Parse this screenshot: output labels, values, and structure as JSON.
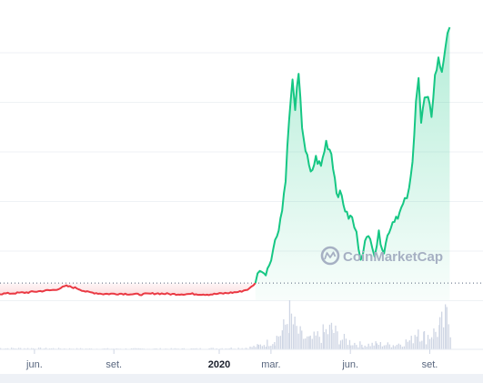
{
  "watermark": {
    "text": "CoinMarketCap",
    "icon": "coinmarketcap-logo-icon"
  },
  "colors": {
    "down_line": "#ea3943",
    "up_line": "#16c784",
    "up_fill": "#16c784",
    "down_fill": "#ea3943",
    "volume": "#cfd6e4",
    "grid": "#eff2f5",
    "baseline_dots": "#58667e",
    "axis_text": "#58667e"
  },
  "chart_data": {
    "type": "line",
    "title": "",
    "xlabel": "",
    "ylabel": "",
    "grid": true,
    "x_ticks": [
      {
        "label": "jun.",
        "date": "2019-06-01",
        "bold": false
      },
      {
        "label": "set.",
        "date": "2019-09-01",
        "bold": false
      },
      {
        "label": "2020",
        "date": "2020-01-01",
        "bold": true
      },
      {
        "label": "mar.",
        "date": "2020-03-01",
        "bold": false
      },
      {
        "label": "jun.",
        "date": "2020-06-01",
        "bold": false
      },
      {
        "label": "set.",
        "date": "2020-09-01",
        "bold": false
      }
    ],
    "x_range": [
      "2019-04-20",
      "2020-10-01"
    ],
    "y_range": [
      0,
      100
    ],
    "baseline_value": 6.3,
    "series": [
      {
        "color": "#ea3943",
        "points": [
          [
            "2019-04-20",
            2.3
          ],
          [
            "2019-05-10",
            2.6
          ],
          [
            "2019-05-25",
            2.9
          ],
          [
            "2019-06-10",
            3.4
          ],
          [
            "2019-06-25",
            3.8
          ],
          [
            "2019-07-08",
            5.2
          ],
          [
            "2019-07-20",
            4.4
          ],
          [
            "2019-08-01",
            3.0
          ],
          [
            "2019-08-20",
            2.3
          ],
          [
            "2019-09-10",
            2.4
          ],
          [
            "2019-10-01",
            2.1
          ],
          [
            "2019-10-20",
            2.5
          ],
          [
            "2019-11-10",
            2.2
          ],
          [
            "2019-12-01",
            2.3
          ],
          [
            "2019-12-20",
            2.1
          ],
          [
            "2020-01-10",
            2.6
          ],
          [
            "2020-01-25",
            3.1
          ],
          [
            "2020-02-05",
            4.2
          ],
          [
            "2020-02-12",
            6.3
          ]
        ]
      },
      {
        "color": "#16c784",
        "points": [
          [
            "2020-02-12",
            6.3
          ],
          [
            "2020-02-17",
            12.0
          ],
          [
            "2020-02-22",
            9.0
          ],
          [
            "2020-02-28",
            13.5
          ],
          [
            "2020-03-08",
            24.0
          ],
          [
            "2020-03-14",
            33.0
          ],
          [
            "2020-03-18",
            45.0
          ],
          [
            "2020-03-22",
            66.0
          ],
          [
            "2020-03-26",
            80.0
          ],
          [
            "2020-03-29",
            71.0
          ],
          [
            "2020-04-02",
            82.0
          ],
          [
            "2020-04-06",
            64.0
          ],
          [
            "2020-04-10",
            55.0
          ],
          [
            "2020-04-16",
            46.0
          ],
          [
            "2020-04-22",
            52.0
          ],
          [
            "2020-04-28",
            49.0
          ],
          [
            "2020-05-04",
            58.0
          ],
          [
            "2020-05-10",
            54.0
          ],
          [
            "2020-05-16",
            40.0
          ],
          [
            "2020-05-22",
            38.0
          ],
          [
            "2020-05-28",
            31.0
          ],
          [
            "2020-06-03",
            30.0
          ],
          [
            "2020-06-08",
            24.0
          ],
          [
            "2020-06-13",
            16.0
          ],
          [
            "2020-06-18",
            21.0
          ],
          [
            "2020-06-24",
            24.0
          ],
          [
            "2020-06-29",
            17.0
          ],
          [
            "2020-07-04",
            24.0
          ],
          [
            "2020-07-10",
            18.0
          ],
          [
            "2020-07-16",
            26.0
          ],
          [
            "2020-07-22",
            30.0
          ],
          [
            "2020-07-28",
            32.0
          ],
          [
            "2020-08-03",
            36.0
          ],
          [
            "2020-08-08",
            40.0
          ],
          [
            "2020-08-12",
            50.0
          ],
          [
            "2020-08-16",
            74.0
          ],
          [
            "2020-08-19",
            82.0
          ],
          [
            "2020-08-22",
            65.0
          ],
          [
            "2020-08-26",
            74.0
          ],
          [
            "2020-08-30",
            73.0
          ],
          [
            "2020-09-03",
            68.0
          ],
          [
            "2020-09-07",
            82.0
          ],
          [
            "2020-09-11",
            88.0
          ],
          [
            "2020-09-15",
            84.0
          ],
          [
            "2020-09-19",
            93.0
          ],
          [
            "2020-09-24",
            100.0
          ]
        ]
      }
    ],
    "volume": {
      "range": [
        0,
        100
      ],
      "points": [
        [
          "2019-04-20",
          3
        ],
        [
          "2019-06-01",
          3
        ],
        [
          "2019-08-01",
          2
        ],
        [
          "2019-10-01",
          2
        ],
        [
          "2019-12-01",
          2
        ],
        [
          "2020-02-01",
          4
        ],
        [
          "2020-02-15",
          10
        ],
        [
          "2020-02-25",
          18
        ],
        [
          "2020-03-05",
          28
        ],
        [
          "2020-03-15",
          55
        ],
        [
          "2020-03-22",
          95
        ],
        [
          "2020-03-28",
          60
        ],
        [
          "2020-04-05",
          35
        ],
        [
          "2020-04-15",
          25
        ],
        [
          "2020-05-01",
          45
        ],
        [
          "2020-05-10",
          55
        ],
        [
          "2020-05-20",
          30
        ],
        [
          "2020-06-01",
          20
        ],
        [
          "2020-06-15",
          12
        ],
        [
          "2020-07-01",
          15
        ],
        [
          "2020-07-20",
          12
        ],
        [
          "2020-08-10",
          25
        ],
        [
          "2020-08-18",
          65
        ],
        [
          "2020-08-25",
          35
        ],
        [
          "2020-09-05",
          45
        ],
        [
          "2020-09-12",
          60
        ],
        [
          "2020-09-20",
          85
        ],
        [
          "2020-09-26",
          70
        ]
      ]
    }
  }
}
